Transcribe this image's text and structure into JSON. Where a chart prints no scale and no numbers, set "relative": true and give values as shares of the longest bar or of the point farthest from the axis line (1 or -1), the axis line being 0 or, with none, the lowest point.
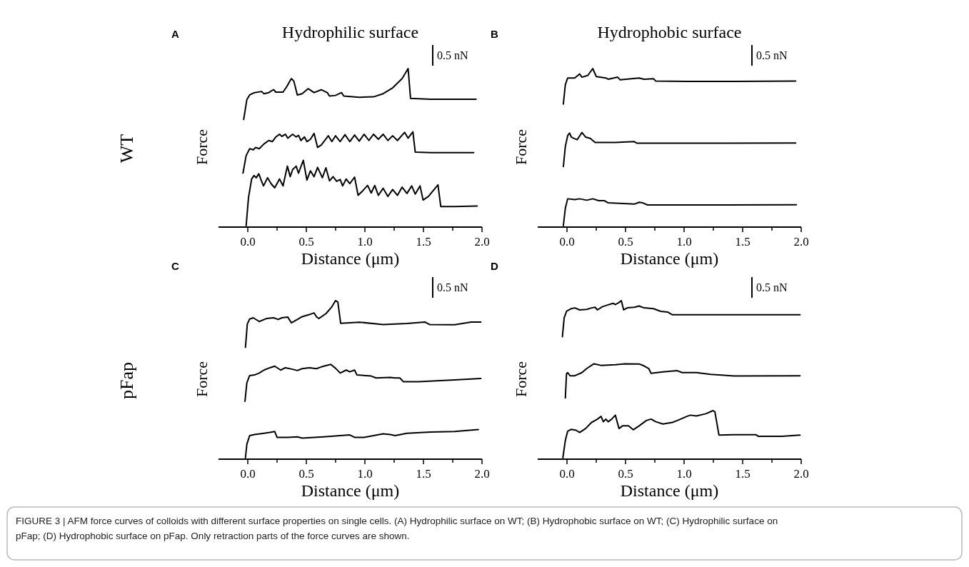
{
  "chart_data": [
    {
      "type": "line",
      "title": "Hydrophilic surface",
      "xlabel": "Distance (μm)",
      "ylabel": "Force",
      "relative": true,
      "tick_labels": "x",
      "xlim": [
        -0.25,
        2.0
      ],
      "xticks": [
        {
          "value": 0,
          "label": "0.0"
        },
        {
          "value": 0.25,
          "label": null
        },
        {
          "value": 0.5,
          "label": "0.5"
        },
        {
          "value": 0.75,
          "label": null
        },
        {
          "value": 1,
          "label": "1.0"
        },
        {
          "value": 1.25,
          "label": null
        },
        {
          "value": 1.5,
          "label": "1.5"
        },
        {
          "value": 1.75,
          "label": null
        },
        {
          "value": 2,
          "label": "2.0"
        }
      ],
      "annotations": [
        "A",
        "0.5 nN",
        "WT"
      ],
      "series": [
        {
          "color": "#000000",
          "x": [
            -0.035,
            -0.008,
            0.016,
            0.057,
            0.118,
            0.138,
            0.179,
            0.22,
            0.24,
            0.301,
            0.332,
            0.372,
            0.393,
            0.423,
            0.464,
            0.515,
            0.566,
            0.627,
            0.678,
            0.698,
            0.749,
            0.8,
            0.82,
            0.952,
            1.074,
            1.156,
            1.237,
            1.318,
            1.369,
            1.39,
            1.563,
            1.766,
            1.949
          ],
          "values": [
            0.676,
            0.802,
            0.832,
            0.847,
            0.854,
            0.84,
            0.847,
            0.866,
            0.85,
            0.85,
            0.884,
            0.936,
            0.921,
            0.832,
            0.84,
            0.872,
            0.847,
            0.865,
            0.847,
            0.825,
            0.829,
            0.847,
            0.825,
            0.817,
            0.82,
            0.84,
            0.877,
            0.936,
            1.0,
            0.81,
            0.805,
            0.805,
            0.805
          ]
        },
        {
          "color": "#000000",
          "x": [
            -0.041,
            -0.014,
            0.016,
            0.047,
            0.067,
            0.098,
            0.138,
            0.179,
            0.21,
            0.24,
            0.271,
            0.291,
            0.321,
            0.342,
            0.383,
            0.413,
            0.433,
            0.454,
            0.484,
            0.505,
            0.535,
            0.566,
            0.596,
            0.627,
            0.688,
            0.718,
            0.749,
            0.789,
            0.83,
            0.871,
            0.912,
            0.952,
            0.993,
            1.034,
            1.074,
            1.115,
            1.156,
            1.196,
            1.237,
            1.278,
            1.339,
            1.369,
            1.41,
            1.43,
            1.563,
            1.929
          ],
          "values": [
            0.334,
            0.446,
            0.49,
            0.483,
            0.498,
            0.49,
            0.52,
            0.542,
            0.535,
            0.565,
            0.582,
            0.568,
            0.582,
            0.557,
            0.582,
            0.565,
            0.575,
            0.542,
            0.565,
            0.535,
            0.55,
            0.587,
            0.498,
            0.513,
            0.572,
            0.535,
            0.572,
            0.535,
            0.579,
            0.535,
            0.577,
            0.538,
            0.582,
            0.542,
            0.582,
            0.55,
            0.582,
            0.542,
            0.572,
            0.542,
            0.594,
            0.557,
            0.597,
            0.468,
            0.465,
            0.465
          ]
        },
        {
          "color": "#000000",
          "x": [
            -0.014,
            0.006,
            0.033,
            0.053,
            0.073,
            0.094,
            0.114,
            0.134,
            0.169,
            0.199,
            0.23,
            0.271,
            0.301,
            0.338,
            0.362,
            0.383,
            0.413,
            0.433,
            0.474,
            0.505,
            0.535,
            0.566,
            0.596,
            0.637,
            0.667,
            0.698,
            0.728,
            0.759,
            0.789,
            0.81,
            0.84,
            0.871,
            0.912,
            0.942,
            0.983,
            1.023,
            1.054,
            1.084,
            1.115,
            1.156,
            1.196,
            1.237,
            1.278,
            1.318,
            1.359,
            1.4,
            1.43,
            1.471,
            1.497,
            1.542,
            1.624,
            1.648,
            1.766,
            1.959
          ],
          "values": [
            0,
            0.178,
            0.297,
            0.319,
            0.305,
            0.33,
            0.29,
            0.253,
            0.305,
            0.267,
            0.241,
            0.297,
            0.253,
            0.379,
            0.312,
            0.357,
            0.379,
            0.334,
            0.416,
            0.29,
            0.349,
            0.312,
            0.371,
            0.305,
            0.368,
            0.285,
            0.312,
            0.282,
            0.294,
            0.253,
            0.297,
            0.267,
            0.309,
            0.193,
            0.223,
            0.256,
            0.208,
            0.256,
            0.193,
            0.238,
            0.186,
            0.23,
            0.193,
            0.245,
            0.205,
            0.253,
            0.201,
            0.253,
            0.163,
            0.186,
            0.26,
            0.122,
            0.122,
            0.125
          ]
        }
      ]
    },
    {
      "type": "line",
      "title": "Hydrophobic surface",
      "xlabel": "Distance (μm)",
      "ylabel": "Force",
      "relative": true,
      "tick_labels": "x",
      "xlim": [
        -0.25,
        2.0
      ],
      "xticks": [
        {
          "value": 0,
          "label": "0.0"
        },
        {
          "value": 0.25,
          "label": null
        },
        {
          "value": 0.5,
          "label": "0.5"
        },
        {
          "value": 0.75,
          "label": null
        },
        {
          "value": 1,
          "label": "1.0"
        },
        {
          "value": 1.25,
          "label": null
        },
        {
          "value": 1.5,
          "label": "1.5"
        },
        {
          "value": 1.75,
          "label": null
        },
        {
          "value": 2,
          "label": "2.0"
        }
      ],
      "annotations": [
        "B",
        "0.5 nN"
      ],
      "series": [
        {
          "color": "#000000",
          "x": [
            -0.031,
            -0.014,
            0.006,
            0.067,
            0.108,
            0.128,
            0.179,
            0.22,
            0.25,
            0.332,
            0.352,
            0.433,
            0.454,
            0.616,
            0.657,
            0.739,
            0.759,
            1.023,
            1.43,
            1.953
          ],
          "values": [
            0.774,
            0.897,
            0.94,
            0.94,
            0.966,
            0.945,
            0.957,
            1.0,
            0.949,
            0.94,
            0.932,
            0.945,
            0.928,
            0.94,
            0.932,
            0.935,
            0.92,
            0.918,
            0.918,
            0.921
          ]
        },
        {
          "color": "#000000",
          "x": [
            -0.031,
            -0.014,
            0.006,
            0.022,
            0.037,
            0.057,
            0.087,
            0.128,
            0.159,
            0.199,
            0.24,
            0.413,
            0.576,
            0.596,
            1.227,
            1.953
          ],
          "values": [
            0.376,
            0.504,
            0.573,
            0.59,
            0.564,
            0.556,
            0.547,
            0.593,
            0.564,
            0.556,
            0.53,
            0.53,
            0.535,
            0.525,
            0.525,
            0.526
          ]
        },
        {
          "color": "#000000",
          "x": [
            -0.031,
            -0.014,
            0.006,
            0.067,
            0.108,
            0.169,
            0.22,
            0.271,
            0.321,
            0.352,
            0.576,
            0.616,
            0.647,
            0.688,
            1.227,
            1.959
          ],
          "values": [
            0,
            0.111,
            0.171,
            0.166,
            0.171,
            0.162,
            0.171,
            0.159,
            0.159,
            0.145,
            0.137,
            0.149,
            0.145,
            0.132,
            0.132,
            0.133
          ]
        }
      ]
    },
    {
      "type": "line",
      "xlabel": "Distance (μm)",
      "ylabel": "Force",
      "relative": true,
      "tick_labels": "x",
      "xlim": [
        -0.25,
        2.0
      ],
      "xticks": [
        {
          "value": 0,
          "label": "0.0"
        },
        {
          "value": 0.25,
          "label": null
        },
        {
          "value": 0.5,
          "label": "0.5"
        },
        {
          "value": 0.75,
          "label": null
        },
        {
          "value": 1,
          "label": "1.0"
        },
        {
          "value": 1.25,
          "label": null
        },
        {
          "value": 1.5,
          "label": "1.5"
        },
        {
          "value": 1.75,
          "label": null
        },
        {
          "value": 2,
          "label": "2.0"
        }
      ],
      "annotations": [
        "C",
        "0.5 nN",
        "pFap"
      ],
      "series": [
        {
          "color": "#000000",
          "x": [
            -0.02,
            -0.004,
            0.016,
            0.047,
            0.098,
            0.159,
            0.22,
            0.26,
            0.291,
            0.342,
            0.372,
            0.423,
            0.464,
            0.525,
            0.566,
            0.586,
            0.606,
            0.667,
            0.718,
            0.749,
            0.769,
            0.793,
            0.952,
            1.156,
            1.359,
            1.512,
            1.552,
            1.766,
            1.908,
            1.99
          ],
          "values": [
            0.703,
            0.852,
            0.883,
            0.891,
            0.867,
            0.886,
            0.891,
            0.88,
            0.891,
            0.895,
            0.859,
            0.88,
            0.898,
            0.911,
            0.922,
            0.898,
            0.886,
            0.917,
            0.961,
            1.0,
            0.992,
            0.856,
            0.863,
            0.848,
            0.855,
            0.864,
            0.848,
            0.847,
            0.864,
            0.864
          ]
        },
        {
          "color": "#000000",
          "x": [
            -0.024,
            -0.008,
            0.016,
            0.057,
            0.098,
            0.138,
            0.189,
            0.23,
            0.281,
            0.321,
            0.383,
            0.423,
            0.464,
            0.525,
            0.586,
            0.627,
            0.708,
            0.749,
            0.789,
            0.84,
            0.871,
            0.912,
            0.932,
            1.054,
            1.095,
            1.217,
            1.257,
            1.298,
            1.329,
            1.461,
            1.766,
            1.99
          ],
          "values": [
            0.359,
            0.477,
            0.523,
            0.527,
            0.539,
            0.558,
            0.573,
            0.583,
            0.558,
            0.573,
            0.563,
            0.555,
            0.567,
            0.573,
            0.567,
            0.578,
            0.594,
            0.57,
            0.539,
            0.558,
            0.547,
            0.558,
            0.527,
            0.52,
            0.508,
            0.511,
            0.508,
            0.508,
            0.484,
            0.484,
            0.495,
            0.505
          ]
        },
        {
          "color": "#000000",
          "x": [
            -0.02,
            -0.008,
            0.016,
            0.057,
            0.138,
            0.189,
            0.23,
            0.25,
            0.342,
            0.423,
            0.464,
            0.647,
            0.871,
            0.912,
            0.993,
            1.074,
            1.156,
            1.217,
            1.257,
            1.359,
            1.563,
            1.766,
            1.969
          ],
          "values": [
            0,
            0.086,
            0.141,
            0.148,
            0.156,
            0.161,
            0.167,
            0.13,
            0.13,
            0.133,
            0.125,
            0.133,
            0.145,
            0.13,
            0.13,
            0.141,
            0.152,
            0.148,
            0.141,
            0.156,
            0.164,
            0.167,
            0.18
          ]
        }
      ]
    },
    {
      "type": "line",
      "xlabel": "Distance (μm)",
      "ylabel": "Force",
      "relative": true,
      "tick_labels": "x",
      "xlim": [
        -0.25,
        2.0
      ],
      "xticks": [
        {
          "value": 0,
          "label": "0.0"
        },
        {
          "value": 0.25,
          "label": null
        },
        {
          "value": 0.5,
          "label": "0.5"
        },
        {
          "value": 0.75,
          "label": null
        },
        {
          "value": 1,
          "label": "1.0"
        },
        {
          "value": 1.25,
          "label": null
        },
        {
          "value": 1.5,
          "label": "1.5"
        },
        {
          "value": 1.75,
          "label": null
        },
        {
          "value": 2,
          "label": "2.0"
        }
      ],
      "annotations": [
        "D",
        "0.5 nN",
        "FIGURE 3 | AFM force curves of colloids with different surface properties on single cells. (A) Hydrophilic surface on WT; (B) Hydrophobic surface on WT; (C) Hydrophilic surface on pFap; (D) Hydrophobic surface on pFap. Only retraction parts of the force curves are shown."
      ],
      "series": [
        {
          "color": "#000000",
          "x": [
            -0.039,
            -0.024,
            -0.004,
            0.037,
            0.067,
            0.108,
            0.169,
            0.21,
            0.24,
            0.26,
            0.301,
            0.342,
            0.393,
            0.413,
            0.444,
            0.464,
            0.484,
            0.515,
            0.576,
            0.616,
            0.657,
            0.739,
            0.8,
            0.861,
            0.901,
            1.227,
            1.99
          ],
          "values": [
            0.771,
            0.89,
            0.932,
            0.949,
            0.954,
            0.941,
            0.944,
            0.954,
            0.958,
            0.941,
            0.961,
            0.971,
            0.983,
            0.975,
            0.988,
            1.0,
            0.941,
            0.954,
            0.958,
            0.966,
            0.954,
            0.949,
            0.932,
            0.927,
            0.91,
            0.91,
            0.91
          ]
        },
        {
          "color": "#000000",
          "x": [
            -0.014,
            -0.004,
            0.006,
            0.026,
            0.067,
            0.128,
            0.169,
            0.23,
            0.291,
            0.413,
            0.494,
            0.616,
            0.657,
            0.698,
            0.718,
            0.82,
            0.942,
            0.983,
            1.105,
            1.227,
            1.43,
            1.99
          ],
          "values": [
            0.381,
            0.534,
            0.542,
            0.522,
            0.522,
            0.542,
            0.568,
            0.598,
            0.588,
            0.592,
            0.598,
            0.597,
            0.585,
            0.568,
            0.537,
            0.547,
            0.554,
            0.542,
            0.542,
            0.531,
            0.52,
            0.522
          ]
        },
        {
          "color": "#000000",
          "x": [
            -0.035,
            -0.014,
            0.006,
            0.037,
            0.077,
            0.108,
            0.159,
            0.21,
            0.24,
            0.26,
            0.291,
            0.311,
            0.332,
            0.352,
            0.382,
            0.413,
            0.444,
            0.474,
            0.525,
            0.566,
            0.616,
            0.678,
            0.718,
            0.759,
            0.82,
            0.901,
            0.942,
            1.023,
            1.054,
            1.105,
            1.186,
            1.247,
            1.263,
            1.298,
            1.43,
            1.613,
            1.634,
            1.837,
            1.99
          ],
          "values": [
            0,
            0.11,
            0.169,
            0.181,
            0.175,
            0.161,
            0.186,
            0.225,
            0.237,
            0.246,
            0.263,
            0.229,
            0.246,
            0.229,
            0.246,
            0.271,
            0.186,
            0.203,
            0.203,
            0.178,
            0.203,
            0.237,
            0.246,
            0.229,
            0.215,
            0.225,
            0.237,
            0.263,
            0.271,
            0.266,
            0.28,
            0.3,
            0.293,
            0.144,
            0.147,
            0.147,
            0.136,
            0.136,
            0.144
          ]
        }
      ]
    }
  ]
}
